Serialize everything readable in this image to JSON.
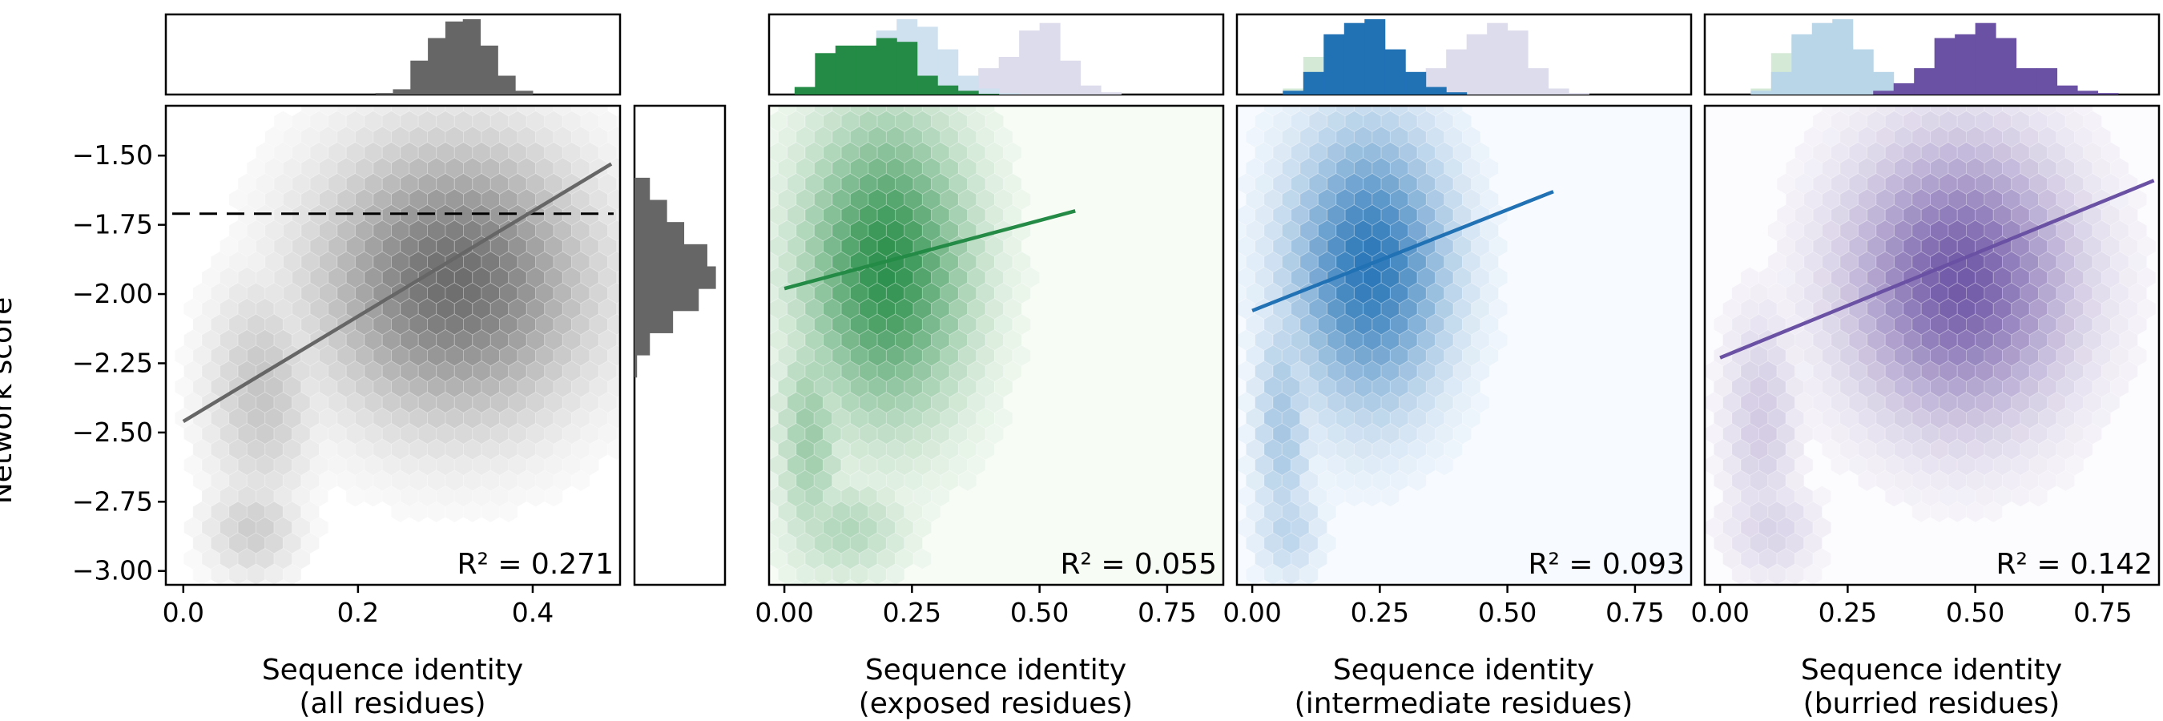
{
  "figure": {
    "y_axis_label": "Network score",
    "y_ticks": [
      "−1.50",
      "−1.75",
      "−2.00",
      "−2.25",
      "−2.50",
      "−2.75",
      "−3.00"
    ],
    "y_tick_values": [
      -1.5,
      -1.75,
      -2.0,
      -2.25,
      -2.5,
      -2.75,
      -3.0
    ],
    "ylim": [
      -3.05,
      -1.32
    ],
    "threshold_line": -1.71
  },
  "chart_data": [
    {
      "type": "heatmap",
      "kind": "hexbin scatter with linear fit and marginal histograms",
      "color": "#666666",
      "xlabel_line1": "Sequence identity",
      "xlabel_line2": "(all residues)",
      "xlim": [
        -0.02,
        0.5
      ],
      "x_tick_values": [
        0.0,
        0.2,
        0.4
      ],
      "x_ticks": [
        "0.0",
        "0.2",
        "0.4"
      ],
      "r2_text": "R² = 0.271",
      "r2": 0.271,
      "fit": {
        "x": [
          0.0,
          0.49
        ],
        "y": [
          -2.46,
          -1.53
        ]
      },
      "density_regions": [
        {
          "cx": 0.31,
          "cy": -1.95,
          "rx": 0.17,
          "ry": 0.55,
          "angle": -38,
          "max": 1.0
        },
        {
          "cx": 0.09,
          "cy": -2.35,
          "rx": 0.07,
          "ry": 0.45,
          "angle": 0,
          "max": 0.4
        },
        {
          "cx": 0.08,
          "cy": -2.85,
          "rx": 0.06,
          "ry": 0.2,
          "angle": 0,
          "max": 0.35
        }
      ],
      "top_hist": {
        "bins": [
          0.22,
          0.24,
          0.26,
          0.28,
          0.3,
          0.32,
          0.34,
          0.36,
          0.38,
          0.4
        ],
        "layers": [
          {
            "color": "#666666",
            "values": [
              0.02,
              0.07,
              0.45,
              0.75,
              0.97,
              1.0,
              0.65,
              0.25,
              0.05
            ]
          }
        ]
      },
      "right_hist": {
        "bins": [
          -1.58,
          -1.66,
          -1.74,
          -1.82,
          -1.9,
          -1.98,
          -2.06,
          -2.14,
          -2.22,
          -2.3
        ],
        "values": [
          0.18,
          0.38,
          0.58,
          0.85,
          0.95,
          0.75,
          0.45,
          0.18,
          0.03
        ]
      }
    },
    {
      "type": "heatmap",
      "kind": "hexbin scatter with linear fit",
      "color": "#238b45",
      "bg": "#f7fcf5",
      "xlabel_line1": "Sequence identity",
      "xlabel_line2": "(exposed residues)",
      "xlim": [
        -0.03,
        0.86
      ],
      "x_tick_values": [
        0.0,
        0.25,
        0.5,
        0.75
      ],
      "x_ticks": [
        "0.00",
        "0.25",
        "0.50",
        "0.75"
      ],
      "r2_text": "R² = 0.055",
      "r2": 0.055,
      "fit": {
        "x": [
          0.0,
          0.57
        ],
        "y": [
          -1.98,
          -1.7
        ]
      },
      "density_regions": [
        {
          "cx": 0.2,
          "cy": -1.9,
          "rx": 0.18,
          "ry": 0.6,
          "angle": 0,
          "max": 1.0
        },
        {
          "cx": 0.05,
          "cy": -2.5,
          "rx": 0.07,
          "ry": 0.5,
          "angle": 0,
          "max": 0.45
        },
        {
          "cx": 0.12,
          "cy": -2.85,
          "rx": 0.13,
          "ry": 0.2,
          "angle": 0,
          "max": 0.35
        }
      ],
      "top_hist": {
        "bins": [
          0.02,
          0.06,
          0.1,
          0.14,
          0.18,
          0.22,
          0.26,
          0.3,
          0.34,
          0.38,
          0.42,
          0.46,
          0.5,
          0.54,
          0.58,
          0.62,
          0.66
        ],
        "layers": [
          {
            "color": "#dcdcec",
            "values": [
              0,
              0,
              0,
              0,
              0,
              0,
              0.05,
              0.2,
              0.15,
              0.35,
              0.5,
              0.85,
              0.95,
              0.45,
              0.12,
              0.03
            ]
          },
          {
            "color": "#cfe1ef",
            "values": [
              0,
              0,
              0.1,
              0.55,
              0.85,
              1.0,
              0.9,
              0.6,
              0.25,
              0.08,
              0.02,
              0,
              0,
              0,
              0,
              0
            ]
          },
          {
            "color": "#238b45",
            "values": [
              0.1,
              0.55,
              0.65,
              0.65,
              0.75,
              0.7,
              0.25,
              0.12,
              0.05,
              0.01,
              0,
              0,
              0,
              0,
              0,
              0
            ]
          }
        ]
      }
    },
    {
      "type": "heatmap",
      "kind": "hexbin scatter with linear fit",
      "color": "#2171b5",
      "bg": "#f7fbff",
      "xlabel_line1": "Sequence identity",
      "xlabel_line2": "(intermediate residues)",
      "xlim": [
        -0.03,
        0.86
      ],
      "x_tick_values": [
        0.0,
        0.25,
        0.5,
        0.75
      ],
      "x_ticks": [
        "0.00",
        "0.25",
        "0.50",
        "0.75"
      ],
      "r2_text": "R² = 0.093",
      "r2": 0.093,
      "fit": {
        "x": [
          0.0,
          0.59
        ],
        "y": [
          -2.06,
          -1.63
        ]
      },
      "density_regions": [
        {
          "cx": 0.23,
          "cy": -1.9,
          "rx": 0.17,
          "ry": 0.55,
          "angle": -15,
          "max": 1.0
        },
        {
          "cx": 0.06,
          "cy": -2.45,
          "rx": 0.06,
          "ry": 0.5,
          "angle": 0,
          "max": 0.4
        },
        {
          "cx": 0.07,
          "cy": -2.85,
          "rx": 0.07,
          "ry": 0.2,
          "angle": 0,
          "max": 0.3
        }
      ],
      "top_hist": {
        "bins": [
          0.02,
          0.06,
          0.1,
          0.14,
          0.18,
          0.22,
          0.26,
          0.3,
          0.34,
          0.38,
          0.42,
          0.46,
          0.5,
          0.54,
          0.58,
          0.62,
          0.66
        ],
        "layers": [
          {
            "color": "#dcdcec",
            "values": [
              0,
              0,
              0,
              0,
              0,
              0,
              0.05,
              0.2,
              0.35,
              0.6,
              0.8,
              0.95,
              0.85,
              0.35,
              0.08,
              0.02
            ]
          },
          {
            "color": "#d4ead7",
            "values": [
              0,
              0.08,
              0.5,
              0.75,
              0.7,
              0.72,
              0.4,
              0.15,
              0.04,
              0,
              0,
              0,
              0,
              0,
              0,
              0
            ]
          },
          {
            "color": "#2171b5",
            "values": [
              0,
              0.05,
              0.3,
              0.8,
              0.95,
              1.0,
              0.6,
              0.3,
              0.1,
              0.03,
              0,
              0,
              0,
              0,
              0,
              0
            ]
          }
        ]
      }
    },
    {
      "type": "heatmap",
      "kind": "hexbin scatter with linear fit",
      "color": "#6a51a3",
      "bg": "#fcfbfd",
      "xlabel_line1": "Sequence identity",
      "xlabel_line2": "(burried residues)",
      "xlim": [
        -0.03,
        0.86
      ],
      "x_tick_values": [
        0.0,
        0.25,
        0.5,
        0.75
      ],
      "x_ticks": [
        "0.00",
        "0.25",
        "0.50",
        "0.75"
      ],
      "r2_text": "R² = 0.142",
      "r2": 0.142,
      "fit": {
        "x": [
          0.0,
          0.85
        ],
        "y": [
          -2.23,
          -1.59
        ]
      },
      "density_regions": [
        {
          "cx": 0.47,
          "cy": -1.95,
          "rx": 0.24,
          "ry": 0.55,
          "angle": -25,
          "max": 1.0
        },
        {
          "cx": 0.08,
          "cy": -2.45,
          "rx": 0.08,
          "ry": 0.45,
          "angle": 0,
          "max": 0.3
        },
        {
          "cx": 0.1,
          "cy": -2.85,
          "rx": 0.1,
          "ry": 0.2,
          "angle": 0,
          "max": 0.25
        }
      ],
      "top_hist": {
        "bins": [
          0.02,
          0.06,
          0.1,
          0.14,
          0.18,
          0.22,
          0.26,
          0.3,
          0.34,
          0.38,
          0.42,
          0.46,
          0.5,
          0.54,
          0.58,
          0.62,
          0.66,
          0.7,
          0.74,
          0.78,
          0.82
        ],
        "layers": [
          {
            "color": "#d4ead7",
            "values": [
              0,
              0.08,
              0.55,
              0.75,
              0.72,
              0.65,
              0.3,
              0.1,
              0.02,
              0,
              0,
              0,
              0,
              0,
              0,
              0,
              0,
              0,
              0,
              0
            ]
          },
          {
            "color": "#b9d6e8",
            "values": [
              0,
              0.05,
              0.3,
              0.8,
              0.95,
              1.0,
              0.6,
              0.3,
              0.1,
              0.03,
              0,
              0,
              0,
              0,
              0,
              0,
              0,
              0,
              0,
              0
            ]
          },
          {
            "color": "#6a51a3",
            "values": [
              0,
              0,
              0,
              0,
              0,
              0,
              0,
              0.05,
              0.15,
              0.35,
              0.75,
              0.8,
              0.95,
              0.75,
              0.35,
              0.35,
              0.12,
              0.05,
              0.02,
              0
            ]
          }
        ]
      }
    }
  ]
}
